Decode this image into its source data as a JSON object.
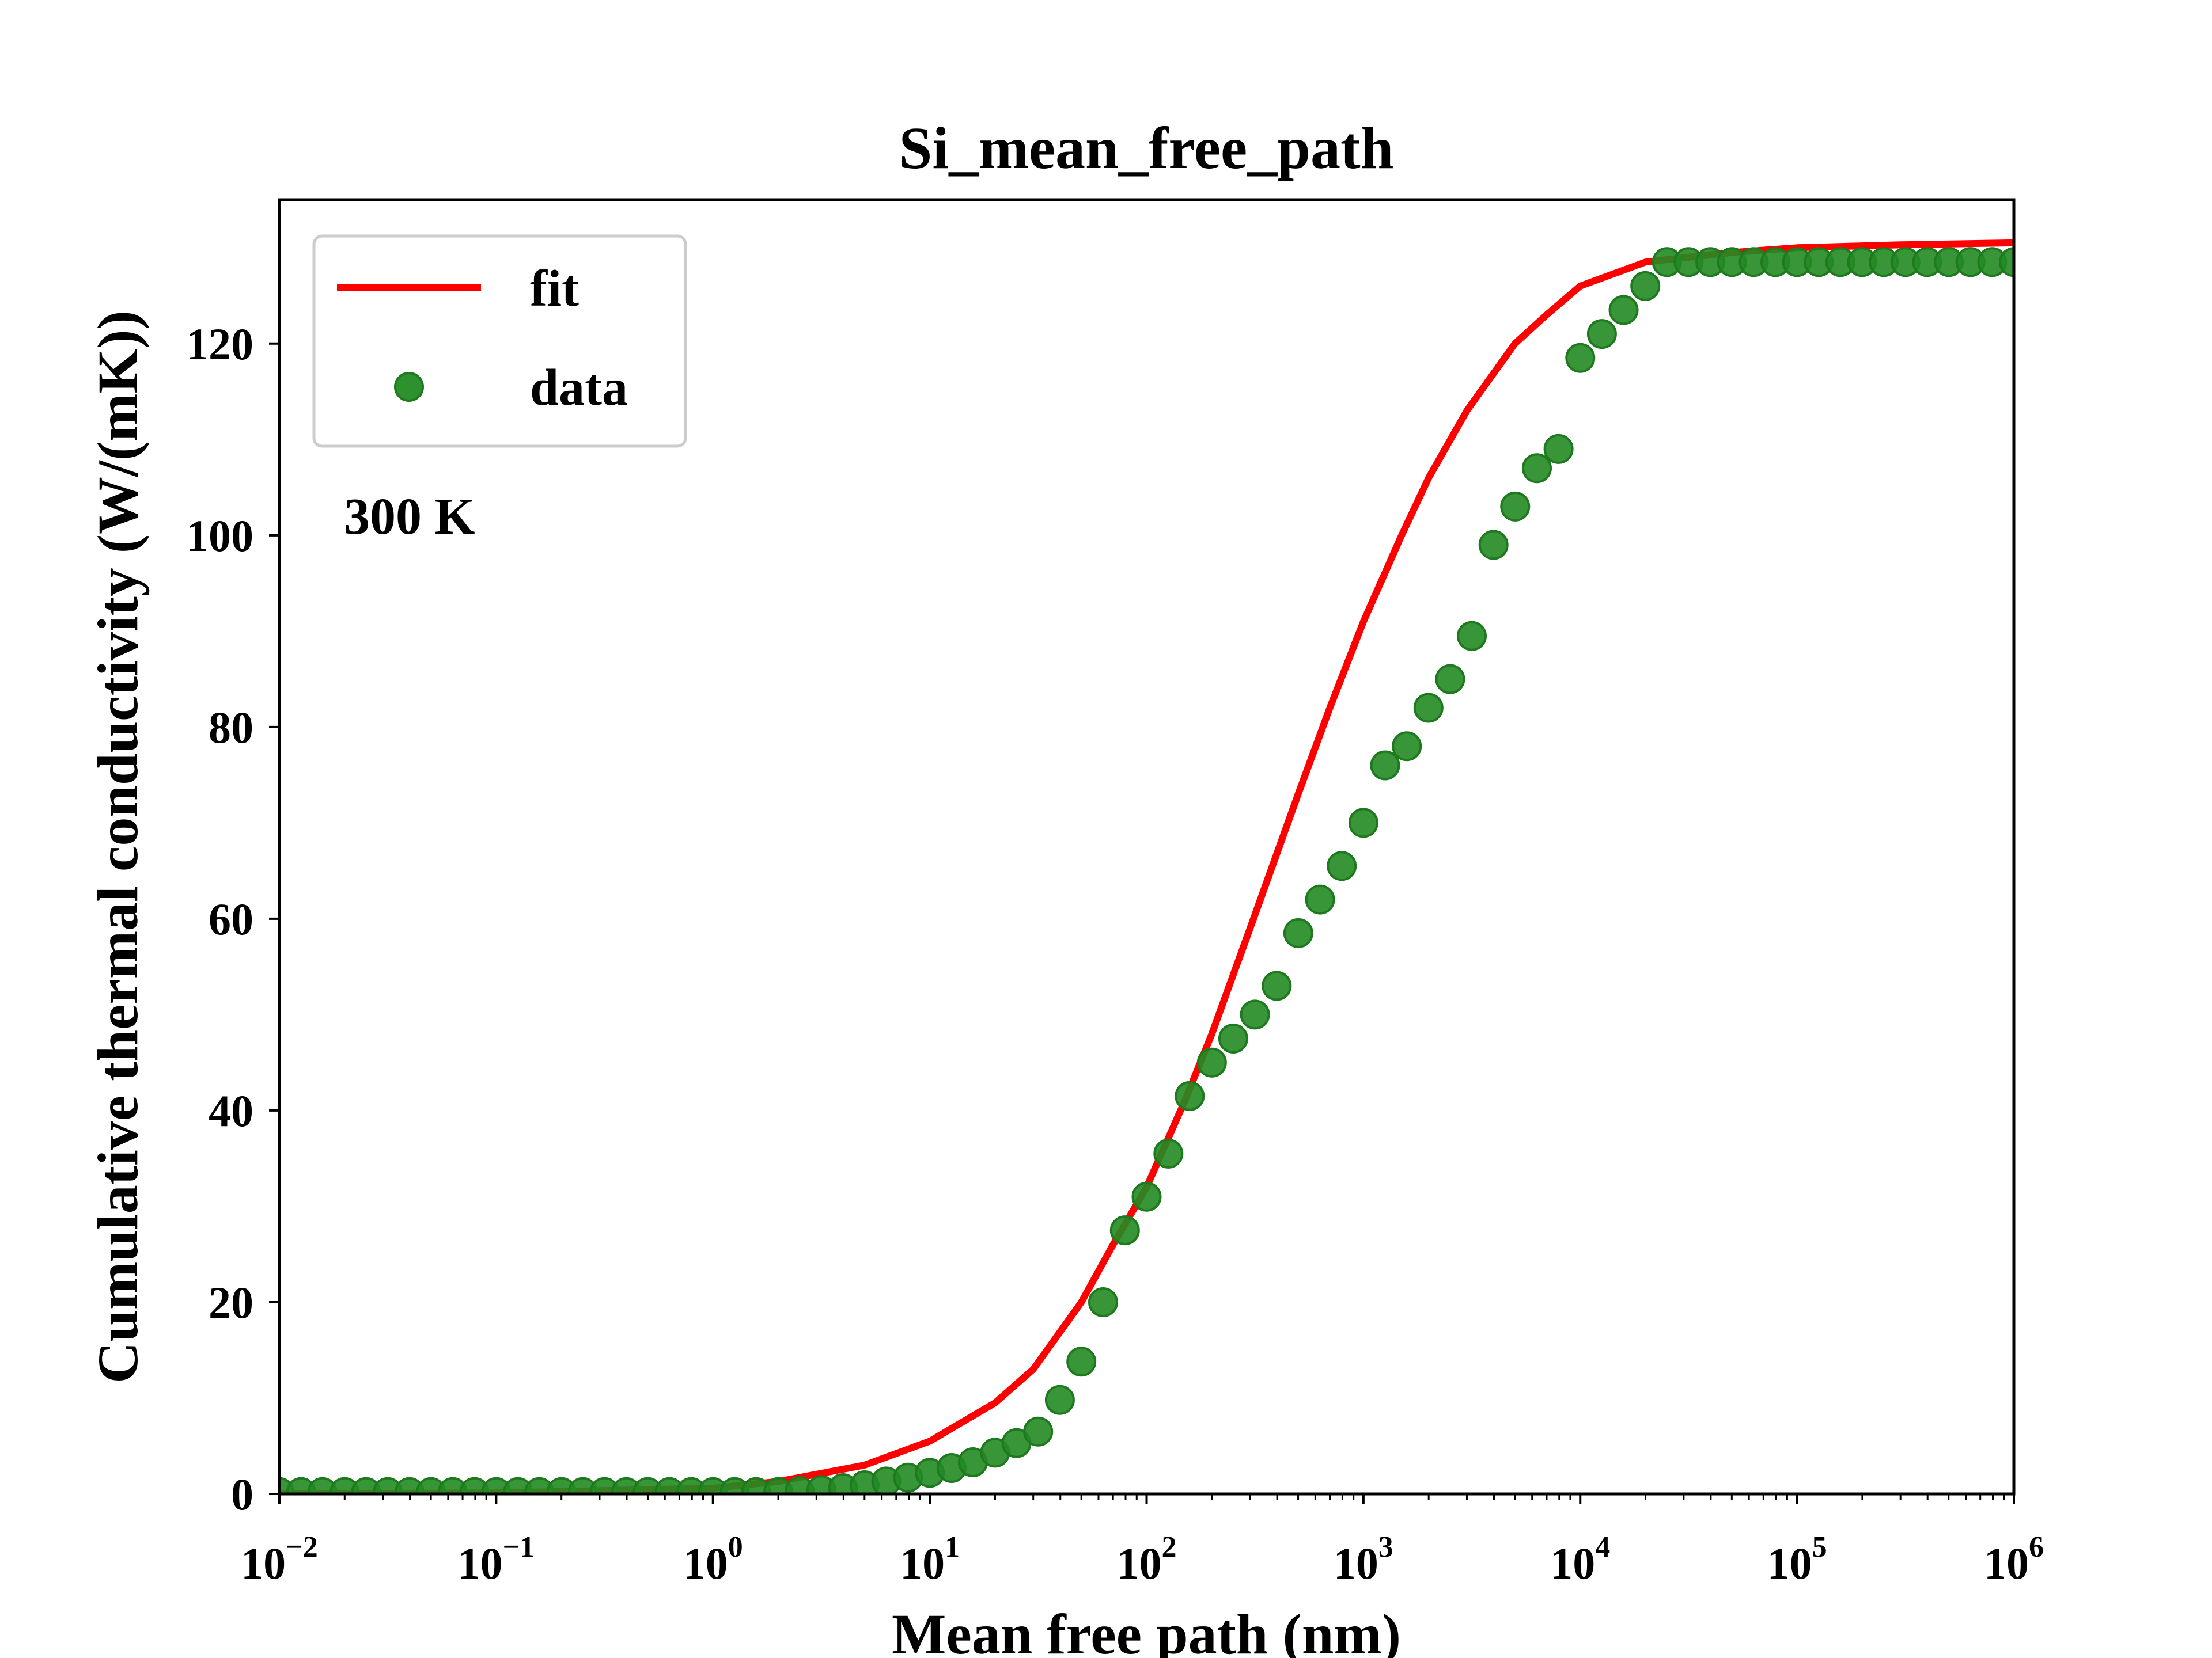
{
  "chart_data": {
    "type": "scatter",
    "title": "Si_mean_free_path",
    "xlabel": "Mean free path (nm)",
    "ylabel": "Cumulative thermal conductivity (W/(mK))",
    "xscale": "log",
    "xlim": [
      0.01,
      1000000
    ],
    "ylim": [
      0,
      135
    ],
    "x_ticks": [
      {
        "base": "10",
        "exp": "−2",
        "value": 0.01
      },
      {
        "base": "10",
        "exp": "−1",
        "value": 0.1
      },
      {
        "base": "10",
        "exp": "0",
        "value": 1
      },
      {
        "base": "10",
        "exp": "1",
        "value": 10
      },
      {
        "base": "10",
        "exp": "2",
        "value": 100
      },
      {
        "base": "10",
        "exp": "3",
        "value": 1000
      },
      {
        "base": "10",
        "exp": "4",
        "value": 10000
      },
      {
        "base": "10",
        "exp": "5",
        "value": 100000
      },
      {
        "base": "10",
        "exp": "6",
        "value": 1000000
      }
    ],
    "y_ticks": [
      0,
      20,
      40,
      60,
      80,
      100,
      120
    ],
    "grid": false,
    "legend": {
      "placement": "upper-left",
      "entries": [
        {
          "label": "fit",
          "kind": "line",
          "color": "#ff0000"
        },
        {
          "label": "data",
          "kind": "marker",
          "color": "#228b22"
        }
      ]
    },
    "annotations": [
      {
        "text": "300 K",
        "placement": "upper-left, below legend"
      }
    ],
    "series": [
      {
        "name": "fit",
        "kind": "line",
        "color": "#ff0000",
        "x": [
          0.01,
          0.1,
          1,
          2,
          5,
          10,
          20,
          30,
          50,
          70,
          100,
          150,
          200,
          300,
          500,
          700,
          1000,
          1500,
          2000,
          3000,
          5000,
          7000,
          10000,
          20000,
          50000,
          100000,
          300000,
          1000000
        ],
        "y": [
          0,
          0.1,
          0.6,
          1.3,
          3,
          5.5,
          9.5,
          13,
          20,
          26,
          32,
          41,
          48,
          59,
          73,
          82,
          91,
          100,
          106,
          113,
          120,
          123,
          126,
          128.5,
          129.5,
          130,
          130.3,
          130.5
        ]
      },
      {
        "name": "data",
        "kind": "scatter",
        "color": "#228b22",
        "x": [
          0.01,
          0.0126,
          0.0158,
          0.02,
          0.0251,
          0.0316,
          0.0398,
          0.05,
          0.063,
          0.0794,
          0.1,
          0.126,
          0.158,
          0.2,
          0.251,
          0.316,
          0.398,
          0.5,
          0.63,
          0.794,
          1,
          1.26,
          1.58,
          2,
          2.51,
          3.16,
          3.98,
          5,
          6.3,
          7.94,
          10,
          12.6,
          15.8,
          20,
          25.1,
          31.6,
          39.8,
          50,
          63,
          79.4,
          100,
          126,
          158,
          200,
          251,
          316,
          398,
          501,
          631,
          794,
          1000,
          1259,
          1585,
          1995,
          2512,
          3162,
          3981,
          5012,
          6310,
          7943,
          10000,
          12589,
          15849,
          19953,
          25119,
          31623,
          39811,
          50119,
          63096,
          79433,
          100000,
          125893,
          158489,
          199526,
          251189,
          316228,
          398107,
          501187,
          630957,
          794328,
          1000000
        ],
        "y": [
          0.2,
          0.2,
          0.2,
          0.2,
          0.2,
          0.2,
          0.2,
          0.2,
          0.2,
          0.2,
          0.2,
          0.2,
          0.2,
          0.2,
          0.2,
          0.2,
          0.2,
          0.2,
          0.2,
          0.2,
          0.2,
          0.2,
          0.2,
          0.2,
          0.3,
          0.4,
          0.6,
          0.9,
          1.3,
          1.7,
          2.2,
          2.7,
          3.3,
          4.3,
          5.3,
          6.5,
          9.8,
          13.8,
          20,
          27.5,
          31,
          35.5,
          41.5,
          45,
          47.5,
          50,
          53,
          58.5,
          62,
          65.5,
          70,
          76,
          78,
          82,
          85,
          89.5,
          99,
          103,
          107,
          109,
          118.5,
          121,
          123.5,
          126,
          128.5,
          128.5,
          128.5,
          128.5,
          128.5,
          128.5,
          128.5,
          128.5,
          128.5,
          128.5,
          128.5,
          128.5,
          128.5,
          128.5,
          128.5,
          128.5,
          128.5
        ]
      }
    ]
  }
}
